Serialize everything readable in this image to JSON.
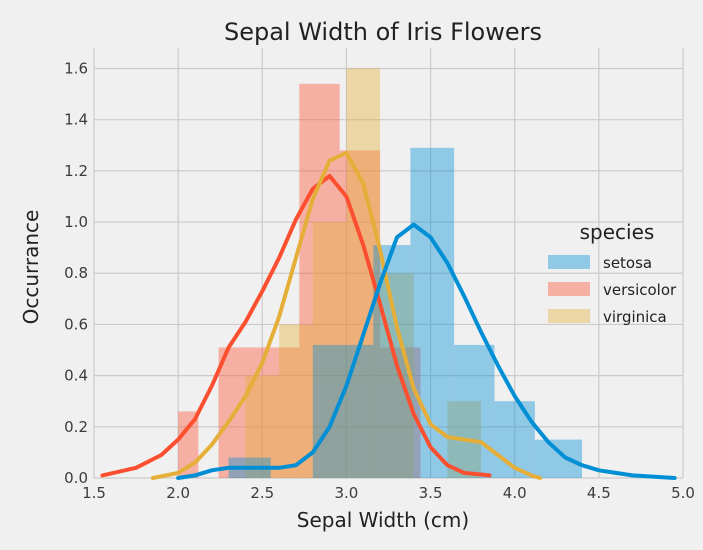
{
  "chart_data": {
    "type": "histogram-kde",
    "title": "Sepal Width of Iris Flowers",
    "xlabel": "Sepal Width (cm)",
    "ylabel": "Occurrance",
    "xlim": [
      1.5,
      5.0
    ],
    "ylim": [
      0.0,
      1.68
    ],
    "xticks": [
      "1.5",
      "2.0",
      "2.5",
      "3.0",
      "3.5",
      "4.0",
      "4.5",
      "5.0"
    ],
    "yticks": [
      "0.0",
      "0.2",
      "0.4",
      "0.6",
      "0.8",
      "1.0",
      "1.2",
      "1.4",
      "1.6"
    ],
    "grid": true,
    "legend": {
      "title": "species",
      "position": "center-right"
    },
    "series": [
      {
        "name": "versicolor",
        "color": "#fc4f30",
        "bins": [
          {
            "x0": 2.0,
            "x1": 2.12,
            "value": 0.26
          },
          {
            "x0": 2.12,
            "x1": 2.24,
            "value": 0.0
          },
          {
            "x0": 2.24,
            "x1": 2.48,
            "value": 0.51
          },
          {
            "x0": 2.48,
            "x1": 2.72,
            "value": 0.51
          },
          {
            "x0": 2.72,
            "x1": 2.96,
            "value": 1.54
          },
          {
            "x0": 2.96,
            "x1": 3.2,
            "value": 1.28
          },
          {
            "x0": 3.2,
            "x1": 3.44,
            "value": 0.51
          }
        ],
        "kde": [
          [
            1.55,
            0.01
          ],
          [
            1.75,
            0.04
          ],
          [
            1.9,
            0.09
          ],
          [
            2.0,
            0.15
          ],
          [
            2.1,
            0.23
          ],
          [
            2.2,
            0.36
          ],
          [
            2.3,
            0.51
          ],
          [
            2.4,
            0.61
          ],
          [
            2.5,
            0.73
          ],
          [
            2.6,
            0.86
          ],
          [
            2.7,
            1.01
          ],
          [
            2.8,
            1.13
          ],
          [
            2.9,
            1.18
          ],
          [
            3.0,
            1.1
          ],
          [
            3.1,
            0.91
          ],
          [
            3.2,
            0.68
          ],
          [
            3.3,
            0.44
          ],
          [
            3.4,
            0.25
          ],
          [
            3.5,
            0.12
          ],
          [
            3.6,
            0.05
          ],
          [
            3.7,
            0.02
          ],
          [
            3.85,
            0.01
          ]
        ]
      },
      {
        "name": "virginica",
        "color": "#e5ae38",
        "bins": [
          {
            "x0": 2.2,
            "x1": 2.4,
            "value": 0.0
          },
          {
            "x0": 2.4,
            "x1": 2.6,
            "value": 0.4
          },
          {
            "x0": 2.6,
            "x1": 2.8,
            "value": 0.6
          },
          {
            "x0": 2.8,
            "x1": 3.0,
            "value": 1.0
          },
          {
            "x0": 3.0,
            "x1": 3.2,
            "value": 1.6
          },
          {
            "x0": 3.2,
            "x1": 3.4,
            "value": 0.8
          },
          {
            "x0": 3.4,
            "x1": 3.6,
            "value": 0.0
          },
          {
            "x0": 3.6,
            "x1": 3.8,
            "value": 0.3
          }
        ],
        "kde": [
          [
            1.85,
            0.0
          ],
          [
            2.0,
            0.02
          ],
          [
            2.1,
            0.06
          ],
          [
            2.2,
            0.13
          ],
          [
            2.3,
            0.22
          ],
          [
            2.4,
            0.32
          ],
          [
            2.5,
            0.45
          ],
          [
            2.6,
            0.63
          ],
          [
            2.7,
            0.86
          ],
          [
            2.8,
            1.09
          ],
          [
            2.9,
            1.24
          ],
          [
            3.0,
            1.27
          ],
          [
            3.1,
            1.15
          ],
          [
            3.2,
            0.89
          ],
          [
            3.3,
            0.59
          ],
          [
            3.4,
            0.35
          ],
          [
            3.5,
            0.21
          ],
          [
            3.6,
            0.16
          ],
          [
            3.7,
            0.15
          ],
          [
            3.8,
            0.14
          ],
          [
            3.9,
            0.09
          ],
          [
            4.0,
            0.04
          ],
          [
            4.1,
            0.01
          ],
          [
            4.15,
            0.0
          ]
        ]
      },
      {
        "name": "setosa",
        "color": "#008fd5",
        "bins": [
          {
            "x0": 2.3,
            "x1": 2.55,
            "value": 0.08
          },
          {
            "x0": 2.8,
            "x1": 3.16,
            "value": 0.52
          },
          {
            "x0": 3.16,
            "x1": 3.38,
            "value": 0.91
          },
          {
            "x0": 3.38,
            "x1": 3.64,
            "value": 1.29
          },
          {
            "x0": 3.64,
            "x1": 3.88,
            "value": 0.52
          },
          {
            "x0": 3.88,
            "x1": 4.12,
            "value": 0.3
          },
          {
            "x0": 4.12,
            "x1": 4.4,
            "value": 0.15
          }
        ],
        "kde": [
          [
            2.0,
            0.0
          ],
          [
            2.1,
            0.01
          ],
          [
            2.2,
            0.03
          ],
          [
            2.3,
            0.04
          ],
          [
            2.4,
            0.04
          ],
          [
            2.5,
            0.04
          ],
          [
            2.6,
            0.04
          ],
          [
            2.7,
            0.05
          ],
          [
            2.8,
            0.1
          ],
          [
            2.9,
            0.2
          ],
          [
            3.0,
            0.36
          ],
          [
            3.1,
            0.56
          ],
          [
            3.2,
            0.76
          ],
          [
            3.3,
            0.94
          ],
          [
            3.4,
            0.99
          ],
          [
            3.5,
            0.94
          ],
          [
            3.6,
            0.84
          ],
          [
            3.7,
            0.71
          ],
          [
            3.8,
            0.57
          ],
          [
            3.9,
            0.44
          ],
          [
            4.0,
            0.32
          ],
          [
            4.1,
            0.22
          ],
          [
            4.2,
            0.14
          ],
          [
            4.3,
            0.08
          ],
          [
            4.4,
            0.05
          ],
          [
            4.5,
            0.03
          ],
          [
            4.6,
            0.02
          ],
          [
            4.7,
            0.01
          ],
          [
            4.95,
            0.0
          ]
        ]
      }
    ],
    "legend_order": [
      "setosa",
      "versicolor",
      "virginica"
    ]
  }
}
